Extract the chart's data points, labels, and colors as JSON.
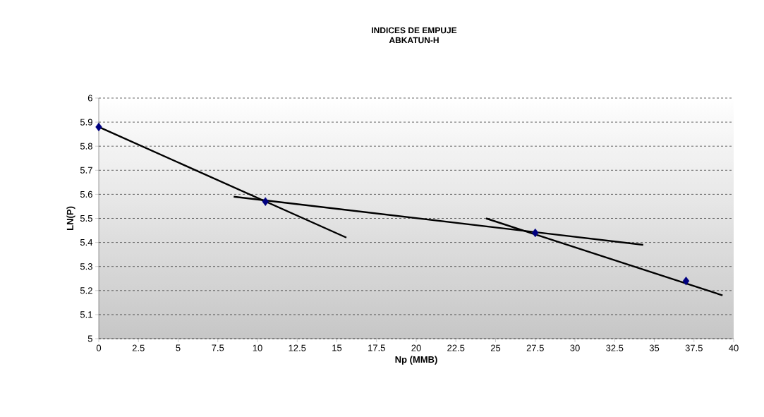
{
  "chart_data": {
    "type": "scatter",
    "title": "INDICES DE EMPUJE",
    "subtitle": "ABKATUN-H",
    "xlabel": "Np (MMB)",
    "ylabel": "LN(P)",
    "xlim": [
      0,
      40
    ],
    "xticks": [
      0,
      2.5,
      5,
      7.5,
      10,
      12.5,
      15,
      17.5,
      20,
      22.5,
      25,
      27.5,
      30,
      32.5,
      35,
      37.5,
      40
    ],
    "ylim": [
      5,
      6
    ],
    "yticks": [
      5,
      5.1,
      5.2,
      5.3,
      5.4,
      5.5,
      5.6,
      5.7,
      5.8,
      5.9,
      6
    ],
    "grid": "y",
    "series": [
      {
        "color": "#000080",
        "marker": "diamond",
        "x": [
          0,
          10.5,
          27.5,
          37
        ],
        "values": [
          5.88,
          5.57,
          5.44,
          5.24
        ]
      },
      {
        "type": "line",
        "color": "#000000",
        "marker": "none",
        "x": [
          0,
          15.6
        ],
        "values": [
          5.88,
          5.42
        ]
      },
      {
        "type": "line",
        "color": "#000000",
        "marker": "none",
        "x": [
          8.5,
          34.3
        ],
        "values": [
          5.59,
          5.39
        ]
      },
      {
        "type": "line",
        "color": "#000000",
        "marker": "none",
        "x": [
          24.4,
          39.3
        ],
        "values": [
          5.5,
          5.18
        ]
      }
    ]
  }
}
